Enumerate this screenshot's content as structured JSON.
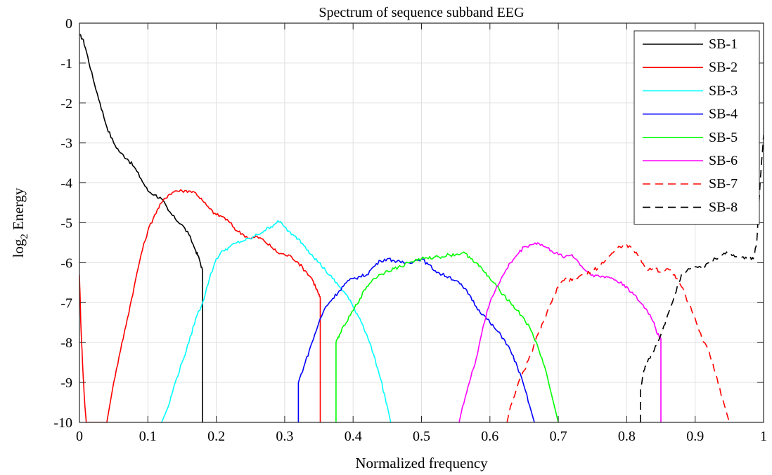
{
  "chart_data": {
    "type": "line",
    "title": "Spectrum of sequence subband EEG",
    "xlabel": "Normalized frequency",
    "ylabel": "log",
    "ylabel_subscript": "2",
    "ylabel_suffix": " Energy",
    "xlim": [
      0,
      1
    ],
    "ylim": [
      -10,
      0
    ],
    "grid": true,
    "legend_position": "top-right",
    "x_ticks": [
      0,
      0.1,
      0.2,
      0.3,
      0.4,
      0.5,
      0.6,
      0.7,
      0.8,
      0.9,
      1
    ],
    "x_tick_labels": [
      "0",
      "0.1",
      "0.2",
      "0.3",
      "0.4",
      "0.5",
      "0.6",
      "0.7",
      "0.8",
      "0.9",
      "1"
    ],
    "y_ticks": [
      0,
      -1,
      -2,
      -3,
      -4,
      -5,
      -6,
      -7,
      -8,
      -9,
      -10
    ],
    "y_tick_labels": [
      "0",
      "-1",
      "-2",
      "-3",
      "-4",
      "-5",
      "-6",
      "-7",
      "-8",
      "-9",
      "-10"
    ],
    "series": [
      {
        "name": "SB-1",
        "color": "#000000",
        "dash": "solid",
        "x": [
          0.0,
          0.005,
          0.01,
          0.02,
          0.03,
          0.04,
          0.05,
          0.06,
          0.07,
          0.08,
          0.09,
          0.1,
          0.11,
          0.12,
          0.13,
          0.14,
          0.15,
          0.16,
          0.17,
          0.175,
          0.18,
          0.18
        ],
        "y": [
          -0.3,
          -0.4,
          -0.7,
          -1.4,
          -2.0,
          -2.6,
          -3.0,
          -3.25,
          -3.4,
          -3.6,
          -3.9,
          -4.2,
          -4.3,
          -4.4,
          -4.7,
          -4.9,
          -5.05,
          -5.3,
          -5.7,
          -5.9,
          -6.2,
          -10
        ]
      },
      {
        "name": "SB-2",
        "color": "#ff0000",
        "dash": "solid",
        "x": [
          0.0,
          0.002,
          0.005,
          0.008,
          0.01,
          0.04,
          0.05,
          0.06,
          0.07,
          0.08,
          0.09,
          0.1,
          0.11,
          0.12,
          0.13,
          0.14,
          0.15,
          0.16,
          0.17,
          0.18,
          0.19,
          0.2,
          0.21,
          0.22,
          0.23,
          0.24,
          0.25,
          0.26,
          0.27,
          0.28,
          0.29,
          0.3,
          0.31,
          0.32,
          0.33,
          0.34,
          0.345,
          0.35,
          0.352,
          0.352
        ],
        "y": [
          -6.3,
          -7.5,
          -8.7,
          -9.6,
          -10,
          -10,
          -9.0,
          -8.2,
          -7.4,
          -6.6,
          -5.8,
          -5.2,
          -4.8,
          -4.5,
          -4.3,
          -4.2,
          -4.2,
          -4.2,
          -4.25,
          -4.45,
          -4.65,
          -4.8,
          -4.85,
          -5.0,
          -5.2,
          -5.3,
          -5.4,
          -5.35,
          -5.45,
          -5.6,
          -5.75,
          -5.8,
          -5.85,
          -6.0,
          -6.2,
          -6.4,
          -6.6,
          -6.8,
          -6.9,
          -10
        ]
      },
      {
        "name": "SB-3",
        "color": "#00ffff",
        "dash": "solid",
        "x": [
          0.12,
          0.13,
          0.14,
          0.15,
          0.16,
          0.17,
          0.18,
          0.19,
          0.2,
          0.21,
          0.22,
          0.23,
          0.24,
          0.25,
          0.26,
          0.27,
          0.28,
          0.29,
          0.3,
          0.31,
          0.32,
          0.33,
          0.34,
          0.35,
          0.36,
          0.37,
          0.38,
          0.39,
          0.4,
          0.41,
          0.42,
          0.43,
          0.44,
          0.45,
          0.455
        ],
        "y": [
          -10,
          -9.6,
          -9.0,
          -8.5,
          -8.0,
          -7.4,
          -7.0,
          -6.4,
          -5.9,
          -5.7,
          -5.6,
          -5.5,
          -5.45,
          -5.4,
          -5.3,
          -5.2,
          -5.1,
          -4.95,
          -5.1,
          -5.3,
          -5.4,
          -5.6,
          -5.8,
          -6.0,
          -6.2,
          -6.4,
          -6.6,
          -6.8,
          -7.1,
          -7.4,
          -7.8,
          -8.3,
          -8.9,
          -9.6,
          -10
        ]
      },
      {
        "name": "SB-4",
        "color": "#0000ff",
        "dash": "solid",
        "x": [
          0.32,
          0.32,
          0.33,
          0.34,
          0.35,
          0.36,
          0.37,
          0.38,
          0.39,
          0.4,
          0.41,
          0.42,
          0.43,
          0.44,
          0.45,
          0.46,
          0.47,
          0.48,
          0.49,
          0.5,
          0.51,
          0.52,
          0.53,
          0.54,
          0.55,
          0.56,
          0.57,
          0.58,
          0.59,
          0.6,
          0.61,
          0.62,
          0.63,
          0.64,
          0.65,
          0.66,
          0.665
        ],
        "y": [
          -10,
          -9.0,
          -8.5,
          -8.0,
          -7.5,
          -7.1,
          -6.9,
          -6.7,
          -6.5,
          -6.4,
          -6.35,
          -6.3,
          -6.1,
          -5.95,
          -5.9,
          -5.95,
          -6.0,
          -6.0,
          -5.95,
          -5.9,
          -6.05,
          -6.2,
          -6.3,
          -6.35,
          -6.45,
          -6.6,
          -6.8,
          -7.1,
          -7.3,
          -7.5,
          -7.7,
          -7.9,
          -8.2,
          -8.6,
          -9.1,
          -9.7,
          -10
        ]
      },
      {
        "name": "SB-5",
        "color": "#00ff00",
        "dash": "solid",
        "x": [
          0.375,
          0.375,
          0.38,
          0.39,
          0.4,
          0.41,
          0.42,
          0.43,
          0.44,
          0.45,
          0.46,
          0.47,
          0.48,
          0.49,
          0.5,
          0.51,
          0.52,
          0.53,
          0.54,
          0.55,
          0.56,
          0.57,
          0.58,
          0.59,
          0.6,
          0.61,
          0.62,
          0.63,
          0.64,
          0.65,
          0.66,
          0.67,
          0.68,
          0.69,
          0.7
        ],
        "y": [
          -10,
          -8.0,
          -7.8,
          -7.5,
          -7.2,
          -6.9,
          -6.6,
          -6.4,
          -6.3,
          -6.2,
          -6.15,
          -6.1,
          -6.0,
          -5.95,
          -5.9,
          -5.9,
          -5.85,
          -5.85,
          -5.8,
          -5.8,
          -5.75,
          -5.85,
          -6.0,
          -6.2,
          -6.4,
          -6.6,
          -6.8,
          -7.0,
          -7.2,
          -7.4,
          -7.7,
          -8.1,
          -8.6,
          -9.3,
          -10
        ]
      },
      {
        "name": "SB-6",
        "color": "#ff00ff",
        "dash": "solid",
        "x": [
          0.555,
          0.56,
          0.57,
          0.58,
          0.59,
          0.6,
          0.61,
          0.62,
          0.63,
          0.64,
          0.65,
          0.66,
          0.67,
          0.68,
          0.69,
          0.7,
          0.71,
          0.72,
          0.73,
          0.74,
          0.75,
          0.76,
          0.77,
          0.78,
          0.79,
          0.8,
          0.81,
          0.82,
          0.83,
          0.84,
          0.845,
          0.85,
          0.85
        ],
        "y": [
          -10,
          -9.6,
          -9.0,
          -8.4,
          -7.6,
          -7.0,
          -6.6,
          -6.3,
          -6.0,
          -5.8,
          -5.6,
          -5.55,
          -5.5,
          -5.6,
          -5.7,
          -5.8,
          -5.85,
          -5.8,
          -6.0,
          -6.2,
          -6.3,
          -6.35,
          -6.35,
          -6.4,
          -6.5,
          -6.6,
          -6.8,
          -7.0,
          -7.2,
          -7.5,
          -7.8,
          -7.9,
          -10
        ]
      },
      {
        "name": "SB-7",
        "color": "#ff0000",
        "dash": "dashed",
        "x": [
          0.625,
          0.63,
          0.64,
          0.65,
          0.66,
          0.67,
          0.68,
          0.69,
          0.7,
          0.71,
          0.72,
          0.73,
          0.74,
          0.75,
          0.76,
          0.77,
          0.78,
          0.79,
          0.8,
          0.81,
          0.82,
          0.83,
          0.84,
          0.85,
          0.86,
          0.87,
          0.88,
          0.89,
          0.9,
          0.91,
          0.92,
          0.93,
          0.94,
          0.95
        ],
        "y": [
          -10,
          -9.6,
          -9.1,
          -8.7,
          -8.3,
          -7.8,
          -7.4,
          -7.0,
          -6.6,
          -6.4,
          -6.45,
          -6.35,
          -6.3,
          -6.2,
          -6.1,
          -5.9,
          -5.75,
          -5.6,
          -5.55,
          -5.7,
          -5.9,
          -6.2,
          -6.1,
          -6.25,
          -6.15,
          -6.3,
          -6.6,
          -7.0,
          -7.4,
          -7.9,
          -8.2,
          -8.8,
          -9.4,
          -10
        ]
      },
      {
        "name": "SB-8",
        "color": "#000000",
        "dash": "dashed",
        "x": [
          0.82,
          0.82,
          0.825,
          0.83,
          0.84,
          0.85,
          0.86,
          0.87,
          0.88,
          0.89,
          0.9,
          0.91,
          0.92,
          0.93,
          0.94,
          0.95,
          0.96,
          0.97,
          0.98,
          0.985,
          0.99,
          0.995,
          1.0
        ],
        "y": [
          -10,
          -9.2,
          -8.7,
          -8.5,
          -8.2,
          -7.8,
          -7.3,
          -6.8,
          -6.3,
          -6.15,
          -6.1,
          -6.15,
          -6.0,
          -5.9,
          -5.8,
          -5.75,
          -5.85,
          -5.85,
          -5.9,
          -5.9,
          -5.5,
          -4.0,
          -2.8
        ]
      }
    ]
  }
}
